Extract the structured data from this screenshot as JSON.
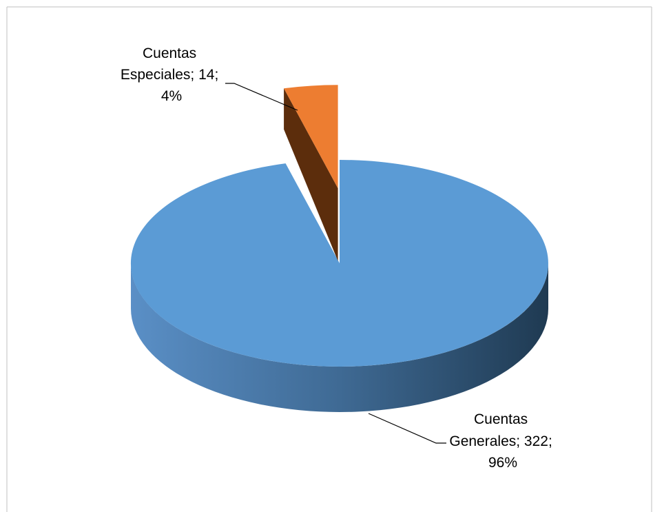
{
  "chart_data": {
    "type": "pie",
    "title": "",
    "style": "3d-exploded",
    "series": [
      {
        "values": [
          322,
          14
        ],
        "percents": [
          "96%",
          "4%"
        ]
      }
    ],
    "categories": [
      "Cuentas Generales",
      "Cuentas Especiales"
    ],
    "slices": [
      {
        "category": "Cuentas Generales",
        "value": 322,
        "percent": "96%",
        "color": "#5b9bd5",
        "label_lines": [
          "Cuentas",
          "Generales; 322;",
          "96%"
        ]
      },
      {
        "category": "Cuentas Especiales",
        "value": 14,
        "percent": "4%",
        "color": "#ed7d31",
        "label_lines": [
          "Cuentas",
          "Especiales; 14;",
          "4%"
        ]
      }
    ],
    "legend": "none",
    "grid": false
  },
  "colors": {
    "frame_border": "#bfbfbf",
    "generales_top": "#5b9bd5",
    "generales_side_light": "#5a8fc6",
    "generales_side_dark": "#1f3a52",
    "especiales_top": "#ed7d31",
    "especiales_side": "#5c2d0c",
    "leader_line": "#000000"
  }
}
